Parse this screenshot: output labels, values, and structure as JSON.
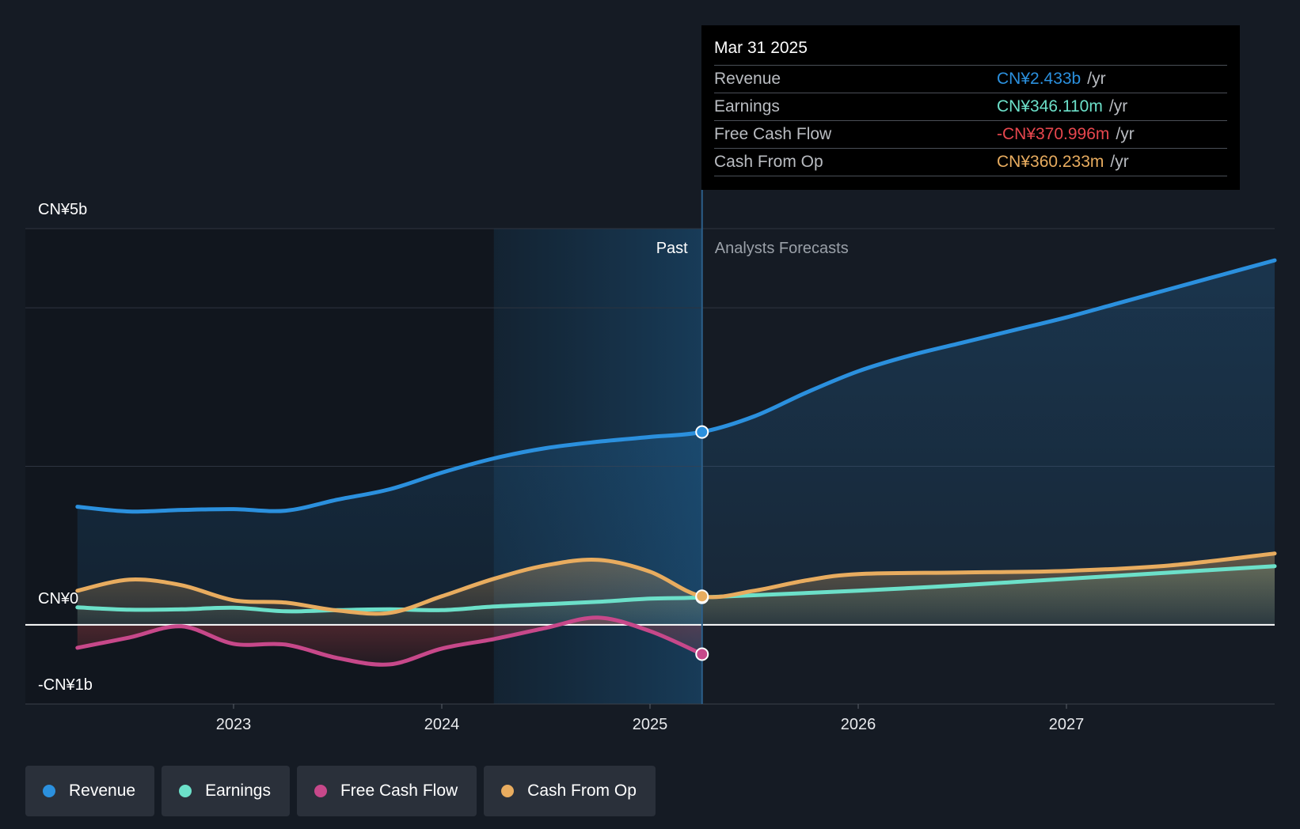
{
  "chart_data": {
    "type": "line",
    "title": "",
    "y_axis": {
      "ylim": [
        -1000,
        5000
      ],
      "unit": "millions CNY",
      "labels": {
        "top": "CN¥5b",
        "zero": "CN¥0",
        "bottom": "-CN¥1b"
      }
    },
    "x_axis": {
      "xlim": [
        2022.0,
        2028.0
      ],
      "ticks": [
        "2023",
        "2024",
        "2025",
        "2026",
        "2027"
      ],
      "tick_values": [
        2023,
        2024,
        2025,
        2026,
        2027
      ]
    },
    "annotations": {
      "past_label": "Past",
      "forecast_label": "Analysts Forecasts",
      "divider_x": 2025.25,
      "highlight_start_x": 2024.25
    },
    "series": [
      {
        "name": "Revenue",
        "color": "#2b90de",
        "points": [
          [
            2022.25,
            1490
          ],
          [
            2022.5,
            1430
          ],
          [
            2022.75,
            1450
          ],
          [
            2023.0,
            1460
          ],
          [
            2023.25,
            1440
          ],
          [
            2023.5,
            1580
          ],
          [
            2023.75,
            1710
          ],
          [
            2024.0,
            1920
          ],
          [
            2024.25,
            2100
          ],
          [
            2024.5,
            2230
          ],
          [
            2024.75,
            2310
          ],
          [
            2025.0,
            2370
          ],
          [
            2025.25,
            2433
          ],
          [
            2025.5,
            2630
          ],
          [
            2025.75,
            2930
          ],
          [
            2026.0,
            3200
          ],
          [
            2026.25,
            3400
          ],
          [
            2026.5,
            3560
          ],
          [
            2026.75,
            3720
          ],
          [
            2027.0,
            3880
          ],
          [
            2027.25,
            4060
          ],
          [
            2027.5,
            4240
          ],
          [
            2027.75,
            4420
          ],
          [
            2028.0,
            4600
          ]
        ]
      },
      {
        "name": "Earnings",
        "color": "#6ce0c9",
        "points": [
          [
            2022.25,
            220
          ],
          [
            2022.5,
            190
          ],
          [
            2022.75,
            195
          ],
          [
            2023.0,
            215
          ],
          [
            2023.25,
            170
          ],
          [
            2023.5,
            185
          ],
          [
            2023.75,
            195
          ],
          [
            2024.0,
            185
          ],
          [
            2024.25,
            230
          ],
          [
            2024.5,
            260
          ],
          [
            2024.75,
            290
          ],
          [
            2025.0,
            330
          ],
          [
            2025.25,
            346
          ],
          [
            2026.0,
            430
          ],
          [
            2026.5,
            500
          ],
          [
            2027.0,
            580
          ],
          [
            2027.5,
            660
          ],
          [
            2028.0,
            740
          ]
        ]
      },
      {
        "name": "Free Cash Flow",
        "color": "#c7488a",
        "points": [
          [
            2022.25,
            -290
          ],
          [
            2022.5,
            -160
          ],
          [
            2022.75,
            -20
          ],
          [
            2023.0,
            -240
          ],
          [
            2023.25,
            -250
          ],
          [
            2023.5,
            -420
          ],
          [
            2023.75,
            -500
          ],
          [
            2024.0,
            -300
          ],
          [
            2024.25,
            -180
          ],
          [
            2024.5,
            -40
          ],
          [
            2024.75,
            90
          ],
          [
            2025.0,
            -80
          ],
          [
            2025.25,
            -371
          ]
        ]
      },
      {
        "name": "Cash From Op",
        "color": "#e8ac5f",
        "points": [
          [
            2022.25,
            430
          ],
          [
            2022.5,
            570
          ],
          [
            2022.75,
            500
          ],
          [
            2023.0,
            310
          ],
          [
            2023.25,
            280
          ],
          [
            2023.5,
            180
          ],
          [
            2023.75,
            150
          ],
          [
            2024.0,
            360
          ],
          [
            2024.25,
            580
          ],
          [
            2024.5,
            750
          ],
          [
            2024.75,
            820
          ],
          [
            2025.0,
            670
          ],
          [
            2025.25,
            360
          ],
          [
            2025.5,
            430
          ],
          [
            2025.75,
            560
          ],
          [
            2026.0,
            640
          ],
          [
            2026.5,
            660
          ],
          [
            2027.0,
            680
          ],
          [
            2027.5,
            750
          ],
          [
            2028.0,
            900
          ]
        ]
      }
    ]
  },
  "tooltip": {
    "date": "Mar 31 2025",
    "rows": [
      {
        "label": "Revenue",
        "value": "CN¥2.433b",
        "unit": "/yr",
        "color": "#2b90de"
      },
      {
        "label": "Earnings",
        "value": "CN¥346.110m",
        "unit": "/yr",
        "color": "#6ce0c9"
      },
      {
        "label": "Free Cash Flow",
        "value": "-CN¥370.996m",
        "unit": "/yr",
        "color": "#e8474e"
      },
      {
        "label": "Cash From Op",
        "value": "CN¥360.233m",
        "unit": "/yr",
        "color": "#e8ac5f"
      }
    ]
  },
  "legend": [
    {
      "label": "Revenue",
      "color": "#2b90de"
    },
    {
      "label": "Earnings",
      "color": "#6ce0c9"
    },
    {
      "label": "Free Cash Flow",
      "color": "#c7488a"
    },
    {
      "label": "Cash From Op",
      "color": "#e8ac5f"
    }
  ]
}
